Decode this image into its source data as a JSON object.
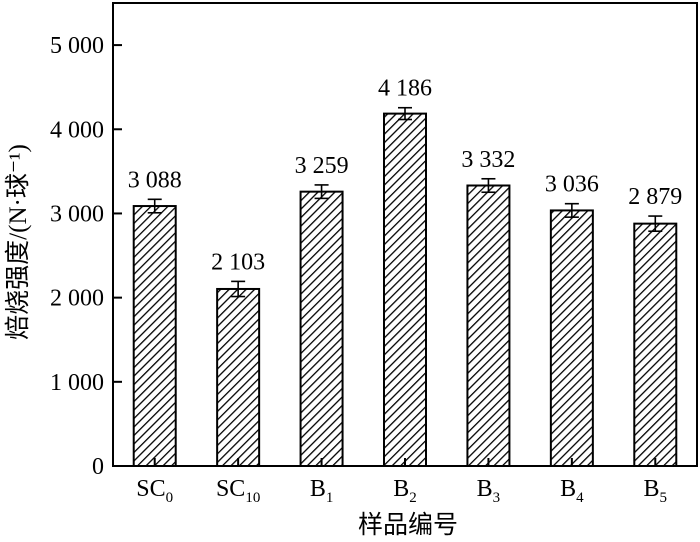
{
  "chart_data": {
    "type": "bar",
    "categories": [
      {
        "base": "SC",
        "sub": "0"
      },
      {
        "base": "SC",
        "sub": "10"
      },
      {
        "base": "B",
        "sub": "1"
      },
      {
        "base": "B",
        "sub": "2"
      },
      {
        "base": "B",
        "sub": "3"
      },
      {
        "base": "B",
        "sub": "4"
      },
      {
        "base": "B",
        "sub": "5"
      }
    ],
    "values": [
      3088,
      2103,
      3259,
      4186,
      3332,
      3036,
      2879
    ],
    "value_labels": [
      "3 088",
      "2 103",
      "3 259",
      "4 186",
      "3 332",
      "3 036",
      "2 879"
    ],
    "errors": [
      80,
      90,
      80,
      70,
      80,
      80,
      90
    ],
    "xlabel": "样品编号",
    "ylabel": "焙烧强度/(N·球⁻¹)",
    "ylim": [
      0,
      5500
    ],
    "yticks": [
      0,
      1000,
      2000,
      3000,
      4000,
      5000
    ],
    "ytick_labels": [
      "0",
      "1 000",
      "2 000",
      "3 000",
      "4 000",
      "5 000"
    ],
    "bar_fill": "diagonal-hatch",
    "colors": {
      "bar_edge": "#000000",
      "hatch": "#000000",
      "background": "#ffffff"
    },
    "grid": false,
    "legend": "none"
  }
}
